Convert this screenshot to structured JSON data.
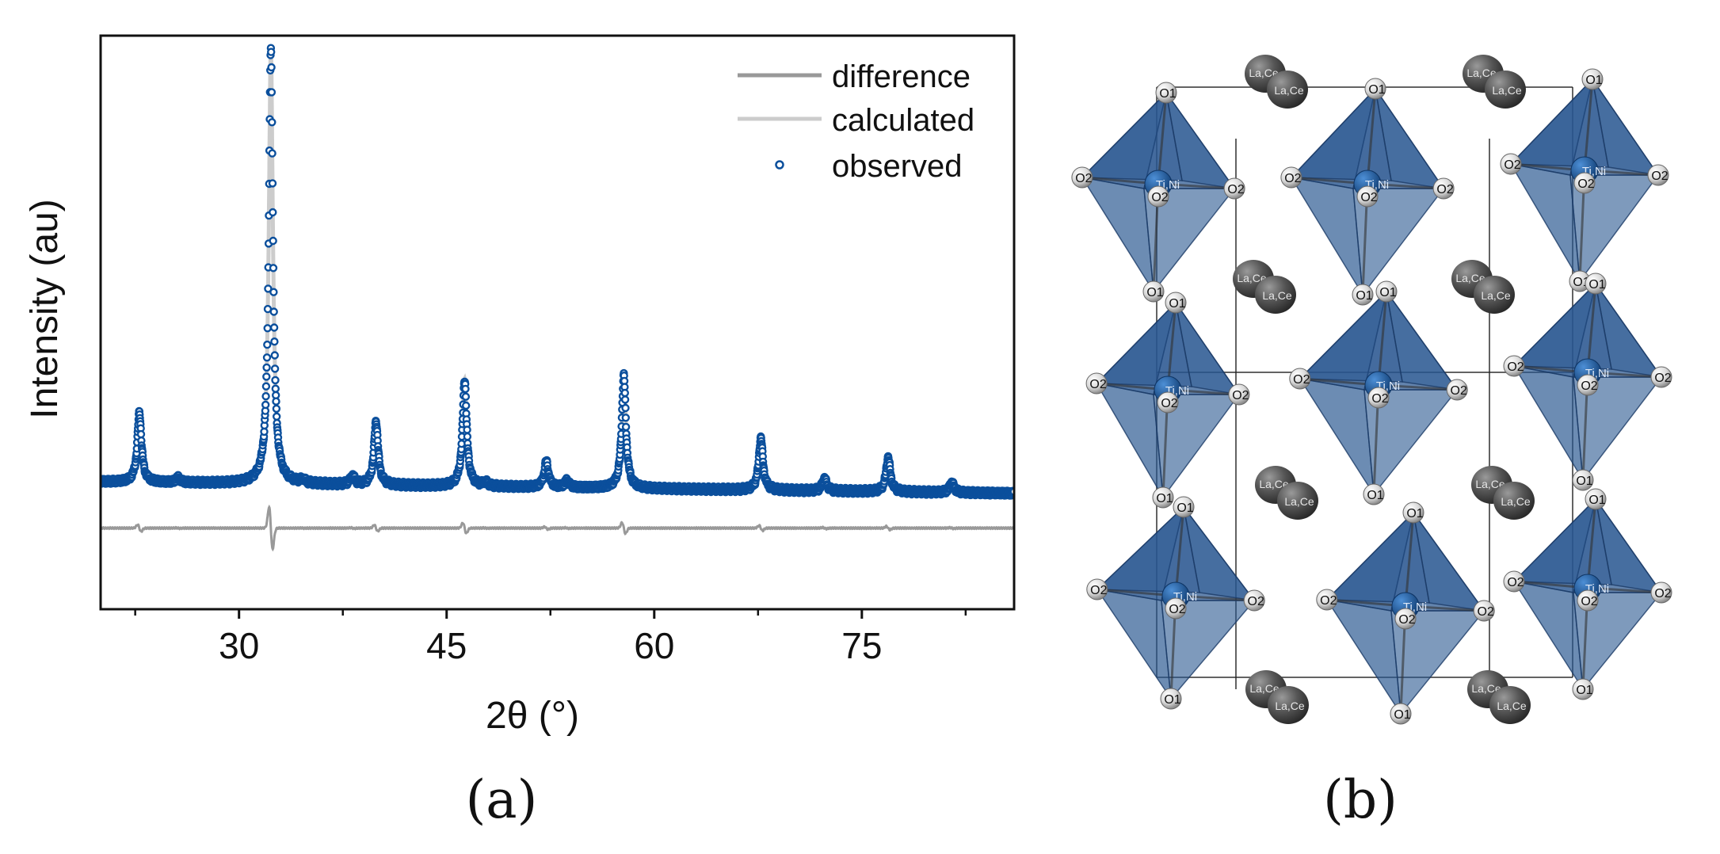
{
  "figure": {
    "panel_a_label": "(a)",
    "panel_b_label": "(b)"
  },
  "chart_data": {
    "type": "line",
    "title": "",
    "xlabel": "2θ (°)",
    "ylabel": "Intensity (au)",
    "xlim": [
      20,
      86
    ],
    "ylim": [
      -0.6,
      9.3
    ],
    "x_ticks": [
      30,
      45,
      60,
      75
    ],
    "x_ticks_minor": [
      22.5,
      37.5,
      52.5,
      67.5,
      82.5
    ],
    "y_ticks": [],
    "grid": false,
    "legend": {
      "position": "top-right",
      "entries": [
        {
          "label": "difference",
          "style": "line",
          "color": "#999999"
        },
        {
          "label": "calculated",
          "style": "line",
          "color": "#cccccc"
        },
        {
          "label": "observed",
          "style": "marker",
          "color": "#0b4f9c"
        }
      ]
    },
    "series": [
      {
        "name": "observed",
        "kind": "points",
        "color": "#0b4f9c",
        "baseline_start": 1.6,
        "baseline_end": 1.4
      },
      {
        "name": "calculated",
        "kind": "line",
        "color": "#cccccc"
      },
      {
        "name": "difference",
        "kind": "line",
        "color": "#999999",
        "offset": 0.8
      }
    ],
    "peaks": [
      {
        "x": 22.8,
        "height": 1.2
      },
      {
        "x": 25.6,
        "height": 0.08
      },
      {
        "x": 32.3,
        "height": 7.5
      },
      {
        "x": 34.6,
        "height": 0.06
      },
      {
        "x": 38.2,
        "height": 0.15
      },
      {
        "x": 39.9,
        "height": 1.1
      },
      {
        "x": 46.3,
        "height": 1.85
      },
      {
        "x": 47.8,
        "height": 0.07
      },
      {
        "x": 52.2,
        "height": 0.45
      },
      {
        "x": 53.7,
        "height": 0.12
      },
      {
        "x": 57.8,
        "height": 1.95
      },
      {
        "x": 67.7,
        "height": 0.9
      },
      {
        "x": 72.3,
        "height": 0.22
      },
      {
        "x": 76.9,
        "height": 0.6
      },
      {
        "x": 81.5,
        "height": 0.18
      }
    ]
  },
  "structure": {
    "labels": {
      "o1": "O1",
      "o2": "O2",
      "b_site": "Ti,Ni",
      "a_site_1": "La,Ce",
      "a_site_2": "La,Ce"
    },
    "colors": {
      "octahedron": "#27558f",
      "b_atom": "#1f64b0",
      "a_atom": "#3a3a3a",
      "o_atom": "#dcdcdc"
    }
  }
}
